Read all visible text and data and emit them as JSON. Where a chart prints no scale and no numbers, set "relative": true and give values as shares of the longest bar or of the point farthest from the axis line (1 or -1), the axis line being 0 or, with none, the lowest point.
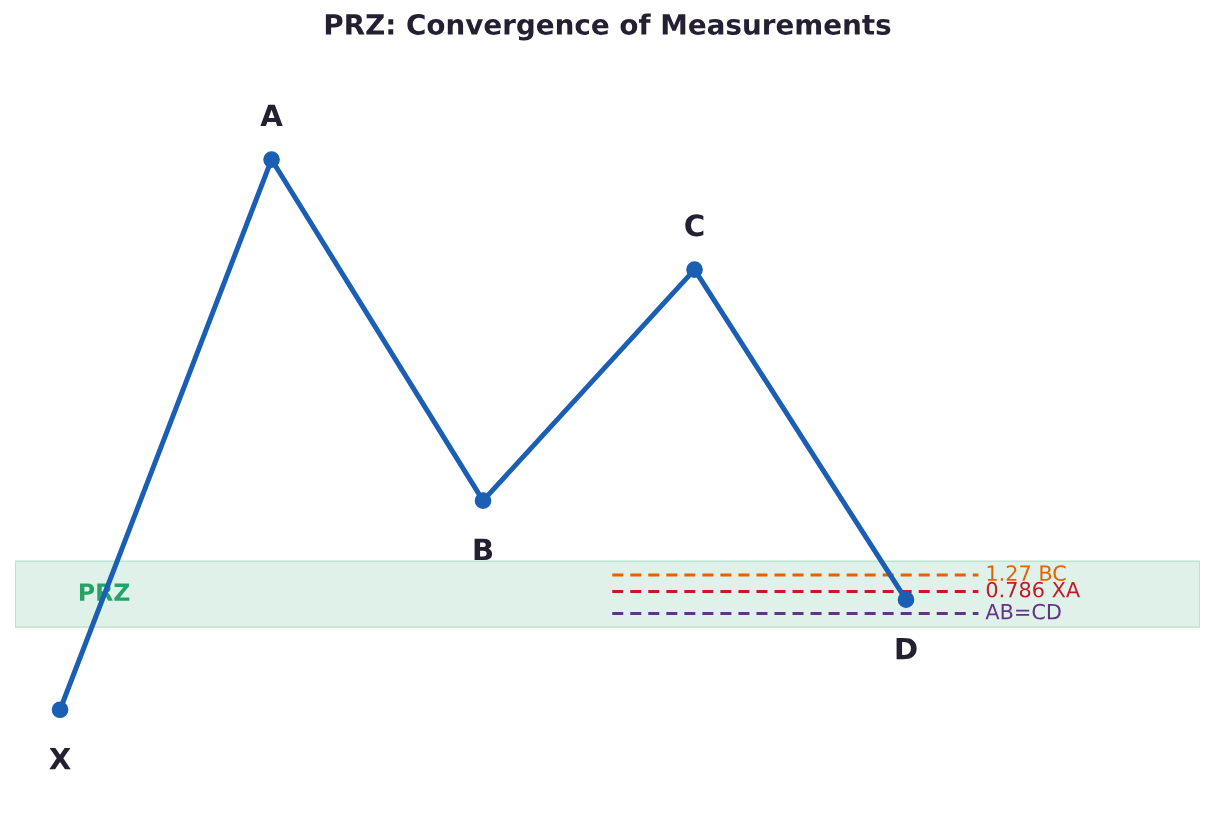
{
  "chart_data": {
    "type": "line",
    "title": "PRZ: Convergence of Measurements",
    "relative": true,
    "categories": [
      null,
      null,
      null,
      null,
      null
    ],
    "series": [
      {
        "values": [
          0,
          1,
          0.38,
          0.8,
          0.2
        ],
        "color": "#1a5fb4",
        "marker": "circle",
        "line_style": "solid"
      }
    ],
    "ref_lines": [
      {
        "axis": "y",
        "value": 0.245,
        "label": "1.27 BC",
        "color": "#e66100",
        "line_style": "dashed"
      },
      {
        "axis": "y",
        "value": 0.215,
        "label": "0.786 XA",
        "color": "#c01c28",
        "line_style": "dashed"
      },
      {
        "axis": "y",
        "value": 0.175,
        "label": "AB=CD",
        "color": "#613583",
        "line_style": "dashed"
      }
    ],
    "bands": [
      {
        "axis": "y",
        "from": 0.15,
        "to": 0.27,
        "label": "PRZ",
        "color": "#26a269"
      }
    ],
    "annotations": [
      {
        "text": "X",
        "y": 0
      },
      {
        "text": "A",
        "y": 1
      },
      {
        "text": "B",
        "y": 0.38
      },
      {
        "text": "C",
        "y": 0.8
      },
      {
        "text": "D",
        "y": 0.2
      }
    ]
  }
}
